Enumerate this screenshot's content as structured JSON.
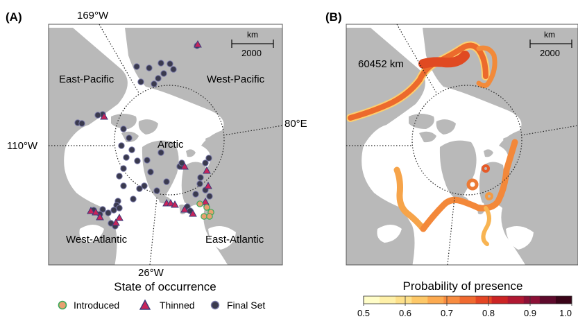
{
  "panel_a": {
    "label": "(A)",
    "meridian_labels": {
      "top": "169°W",
      "left": "110°W",
      "right": "80°E",
      "bottom": "26°W"
    },
    "regions": {
      "east_pacific": "East-Pacific",
      "west_pacific": "West-Pacific",
      "arctic": "Arctic",
      "west_atlantic": "West-Atlantic",
      "east_atlantic": "East-Atlantic"
    },
    "scale_bar": {
      "unit": "km",
      "value": "2000"
    }
  },
  "panel_b": {
    "label": "(B)",
    "distance_label": "60452 km",
    "scale_bar": {
      "unit": "km",
      "value": "2000"
    }
  },
  "legend_a": {
    "title": "State of occurrence",
    "items": [
      {
        "label": "Introduced",
        "fill": "#e8a070",
        "stroke": "#3aaa5a"
      },
      {
        "label": "Thinned",
        "fill": "#c8245a",
        "stroke": "#3a3a7a"
      },
      {
        "label": "Final Set",
        "fill": "#3a3a4e",
        "stroke": "#7878a8"
      }
    ]
  },
  "colorbar_b": {
    "title": "Probability of presence",
    "ticks": [
      "0.5",
      "0.6",
      "0.7",
      "0.8",
      "0.9",
      "1.0"
    ],
    "colors": [
      "#fffdc8",
      "#fef0a8",
      "#fde08a",
      "#fdc868",
      "#fcaa50",
      "#f88c40",
      "#f06a30",
      "#e44624",
      "#cc2424",
      "#b01832",
      "#8c1036",
      "#5e0a2c",
      "#3a0418"
    ]
  },
  "colors": {
    "land": "#b9b9b9",
    "frame": "#555555"
  }
}
